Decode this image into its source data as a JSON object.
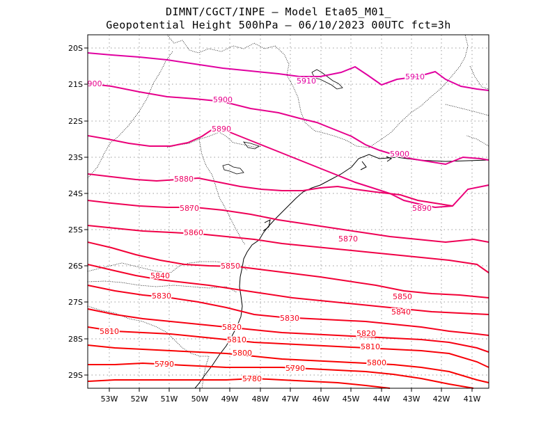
{
  "title_line1": "DIMNT/CGCT/INPE –  Model Eta05_M01_",
  "title_line2": "Geopotential Height 500hPa –  06/10/2023 00UTC fct=3h",
  "x_ticks": [
    "53W",
    "52W",
    "51W",
    "50W",
    "49W",
    "48W",
    "47W",
    "46W",
    "45W",
    "44W",
    "43W",
    "42W",
    "41W"
  ],
  "y_ticks": [
    "20S",
    "21S",
    "22S",
    "23S",
    "24S",
    "25S",
    "26S",
    "27S",
    "28S",
    "29S"
  ],
  "contours": [
    {
      "value": 5910,
      "labels": [
        "5910",
        "5910"
      ],
      "color": "#e000a0"
    },
    {
      "value": 5900,
      "labels": [
        "900",
        "5900",
        "5900"
      ],
      "color": "#e6008c"
    },
    {
      "value": 5890,
      "labels": [
        "5890",
        "5890"
      ],
      "color": "#ea0078"
    },
    {
      "value": 5880,
      "labels": [
        "5880"
      ],
      "color": "#ec0066"
    },
    {
      "value": 5870,
      "labels": [
        "5870",
        "5870"
      ],
      "color": "#ee0055"
    },
    {
      "value": 5860,
      "labels": [
        "5860"
      ],
      "color": "#f00046"
    },
    {
      "value": 5850,
      "labels": [
        "5850",
        "5850"
      ],
      "color": "#f20036"
    },
    {
      "value": 5840,
      "labels": [
        "5840",
        "5840"
      ],
      "color": "#f40028"
    },
    {
      "value": 5830,
      "labels": [
        "5830",
        "5830"
      ],
      "color": "#f5001c"
    },
    {
      "value": 5820,
      "labels": [
        "5820",
        "5820"
      ],
      "color": "#f60012"
    },
    {
      "value": 5810,
      "labels": [
        "5810",
        "5810",
        "5810"
      ],
      "color": "#f70008"
    },
    {
      "value": 5800,
      "labels": [
        "5800",
        "5800"
      ],
      "color": "#f80000"
    },
    {
      "value": 5790,
      "labels": [
        "5790",
        "5790"
      ],
      "color": "#f80000"
    },
    {
      "value": 5780,
      "labels": [
        "5780"
      ],
      "color": "#f80000"
    }
  ]
}
